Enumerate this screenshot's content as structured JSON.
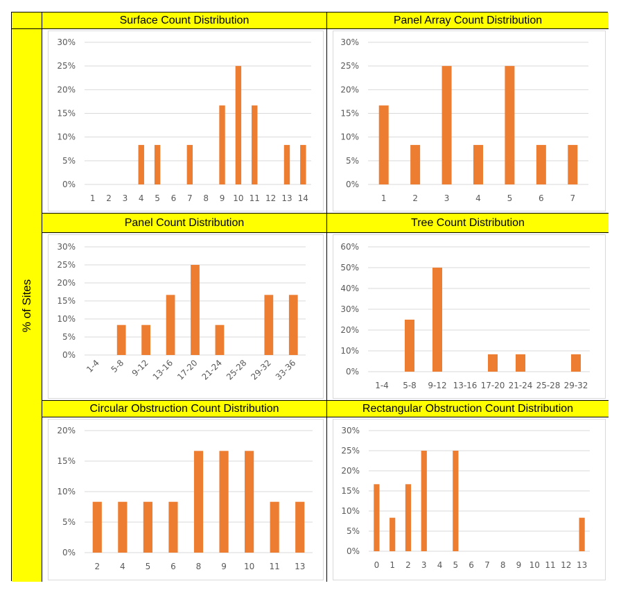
{
  "y_axis_label": "% of Sites",
  "colors": {
    "header": "#ffff00",
    "bar": "#ed7d31",
    "grid": "#d9d9d9"
  },
  "chart_data": [
    {
      "type": "bar",
      "title": "Surface Count Distribution",
      "ylim": [
        0,
        30
      ],
      "ytick_step": 5,
      "yformat": "percent",
      "grid": true,
      "categories": [
        "1",
        "2",
        "3",
        "4",
        "5",
        "6",
        "7",
        "8",
        "9",
        "10",
        "11",
        "12",
        "13",
        "14"
      ],
      "values": [
        0,
        0,
        0,
        8.33,
        8.33,
        0,
        8.33,
        0,
        16.67,
        25,
        16.67,
        0,
        8.33,
        8.33
      ]
    },
    {
      "type": "bar",
      "title": "Panel Array Count Distribution",
      "ylim": [
        0,
        30
      ],
      "ytick_step": 5,
      "yformat": "percent",
      "grid": true,
      "categories": [
        "1",
        "2",
        "3",
        "4",
        "5",
        "6",
        "7"
      ],
      "values": [
        16.67,
        8.33,
        25,
        8.33,
        25,
        8.33,
        8.33
      ]
    },
    {
      "type": "bar",
      "title": "Panel Count Distribution",
      "ylim": [
        0,
        30
      ],
      "ytick_step": 5,
      "yformat": "percent",
      "grid": true,
      "xlabel_rotation": -45,
      "categories": [
        "1-4",
        "5-8",
        "9-12",
        "13-16",
        "17-20",
        "21-24",
        "25-28",
        "29-32",
        "33-36"
      ],
      "values": [
        0,
        8.33,
        8.33,
        16.67,
        25,
        8.33,
        0,
        16.67,
        16.67
      ]
    },
    {
      "type": "bar",
      "title": "Tree Count Distribution",
      "ylim": [
        0,
        60
      ],
      "ytick_step": 10,
      "yformat": "percent",
      "grid": true,
      "categories": [
        "1-4",
        "5-8",
        "9-12",
        "13-16",
        "17-20",
        "21-24",
        "25-28",
        "29-32"
      ],
      "values": [
        0,
        25,
        50,
        0,
        8.33,
        8.33,
        0,
        8.33
      ]
    },
    {
      "type": "bar",
      "title": "Circular Obstruction Count Distribution",
      "ylim": [
        0,
        20
      ],
      "ytick_step": 5,
      "yformat": "percent",
      "grid": true,
      "categories": [
        "2",
        "4",
        "5",
        "6",
        "8",
        "9",
        "10",
        "11",
        "13"
      ],
      "values": [
        8.33,
        8.33,
        8.33,
        8.33,
        16.67,
        16.67,
        16.67,
        8.33,
        8.33
      ]
    },
    {
      "type": "bar",
      "title": "Rectangular Obstruction Count Distribution",
      "ylim": [
        0,
        30
      ],
      "ytick_step": 5,
      "yformat": "percent",
      "grid": true,
      "categories": [
        "0",
        "1",
        "2",
        "3",
        "4",
        "5",
        "6",
        "7",
        "8",
        "9",
        "10",
        "11",
        "12",
        "13"
      ],
      "values": [
        16.67,
        8.33,
        16.67,
        25,
        0,
        25,
        0,
        0,
        0,
        0,
        0,
        0,
        0,
        8.33
      ]
    }
  ]
}
